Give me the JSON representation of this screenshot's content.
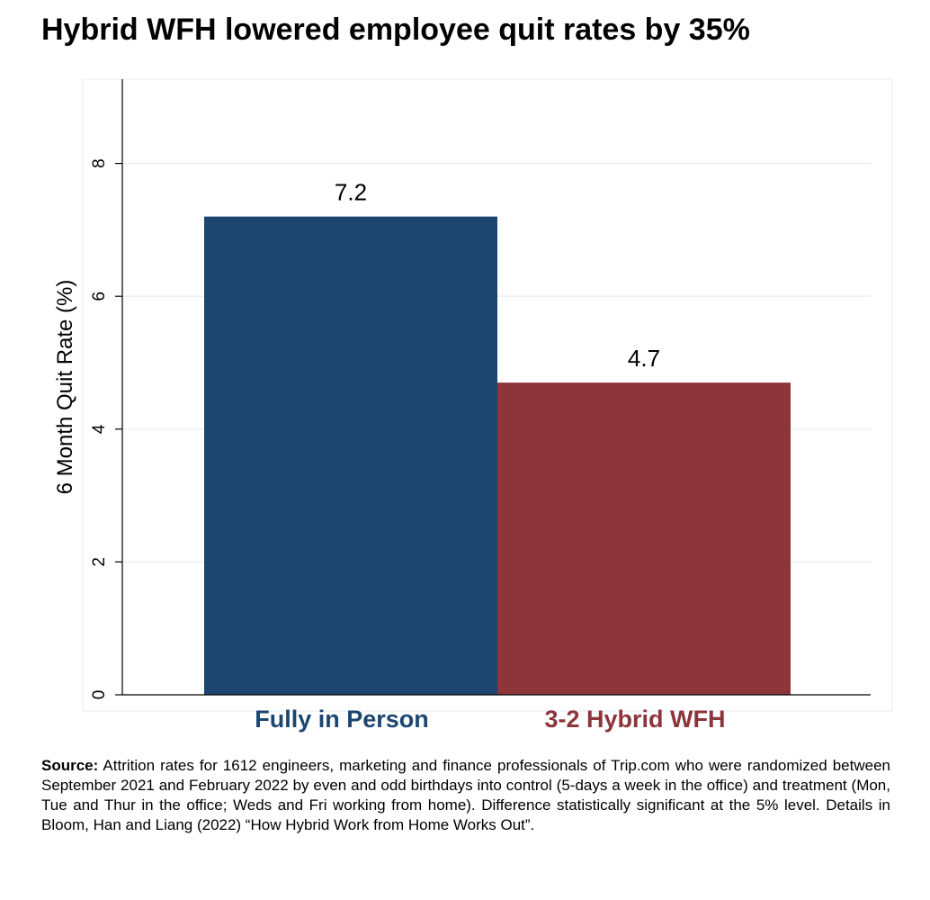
{
  "chart_data": {
    "type": "bar",
    "title": "Hybrid WFH lowered employee quit rates by 35%",
    "ylabel": "6 Month Quit Rate (%)",
    "xlabel": "",
    "ylim": [
      0,
      9
    ],
    "yticks": [
      0,
      2,
      4,
      6,
      8
    ],
    "grid": true,
    "categories": [
      "Fully in Person",
      "3-2 Hybrid WFH"
    ],
    "values": [
      7.2,
      4.7
    ],
    "value_labels": [
      "7.2",
      "4.7"
    ],
    "colors": [
      "#1c4670",
      "#8c353b"
    ]
  },
  "footnote": {
    "label": "Source:",
    "text": "Attrition rates for 1612 engineers, marketing and finance professionals of Trip.com who were randomized between September 2021 and February 2022 by even and odd birthdays into control (5-days a week in the office) and treatment (Mon, Tue and Thur in the office; Weds and Fri working from home). Difference statistically significant at the 5% level. Details in Bloom, Han and Liang (2022) “How Hybrid Work from Home Works Out”."
  }
}
